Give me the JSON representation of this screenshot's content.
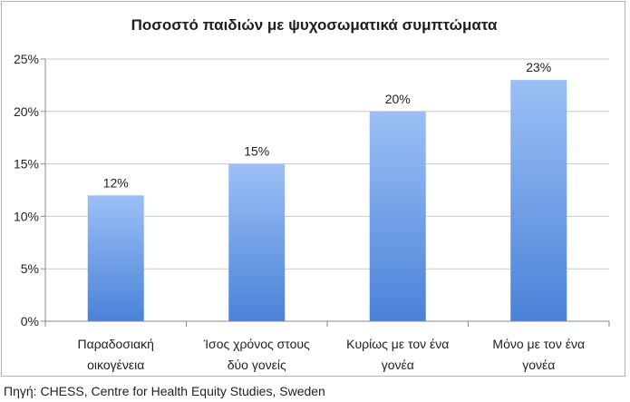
{
  "chart_data": {
    "type": "bar",
    "title": "Ποσοστό παιδιών με ψυχοσωματικά συμπτώματα",
    "categories": [
      [
        "Παραδοσιακή",
        "οικογένεια"
      ],
      [
        "Ίσος χρόνος στους",
        "δύο γονείς"
      ],
      [
        "Κυρίως με τον ένα",
        "γονέα"
      ],
      [
        "Μόνο με τον ένα",
        "γονέα"
      ]
    ],
    "values": [
      12,
      15,
      20,
      23
    ],
    "data_labels": [
      "12%",
      "15%",
      "20%",
      "23%"
    ],
    "ylim": [
      0,
      25
    ],
    "yticks": [
      0,
      5,
      10,
      15,
      20,
      25
    ],
    "ytick_labels": [
      "0%",
      "5%",
      "10%",
      "15%",
      "20%",
      "25%"
    ],
    "grid": true,
    "bar_color_top": "#9cc0f5",
    "bar_color_bottom": "#4a82d8"
  },
  "source": "Πηγή: CHESS, Centre for Health Equity Studies, Sweden"
}
